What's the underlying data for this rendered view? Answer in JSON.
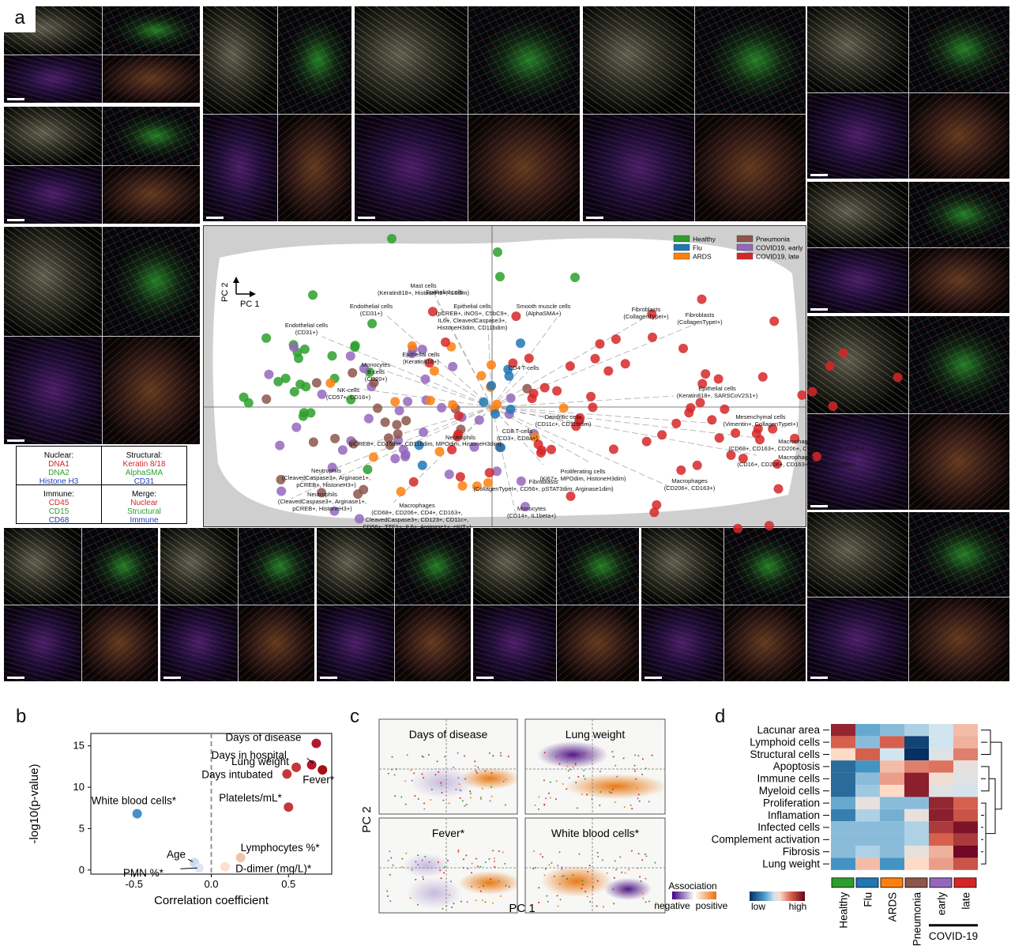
{
  "panel_labels": {
    "a": "a",
    "b": "b",
    "c": "c",
    "d": "d"
  },
  "channel_legend": {
    "nuclear": {
      "title": "Nuclear:",
      "items": [
        {
          "label": "DNA1",
          "color": "#d62728"
        },
        {
          "label": "DNA2",
          "color": "#2ca02c"
        },
        {
          "label": "Histone H3",
          "color": "#1f3fbf"
        }
      ]
    },
    "structural": {
      "title": "Structural:",
      "items": [
        {
          "label": "Keratin 8/18",
          "color": "#d62728"
        },
        {
          "label": "AlphaSMA",
          "color": "#2ca02c"
        },
        {
          "label": "CD31",
          "color": "#1f3fbf"
        }
      ]
    },
    "immune": {
      "title": "Immune:",
      "items": [
        {
          "label": "CD45",
          "color": "#d62728"
        },
        {
          "label": "CD15",
          "color": "#2ca02c"
        },
        {
          "label": "CD68",
          "color": "#1f3fbf"
        }
      ]
    },
    "merge": {
      "title": "Merge:",
      "items": [
        {
          "label": "Nuclear",
          "color": "#d62728"
        },
        {
          "label": "Structural",
          "color": "#2ca02c"
        },
        {
          "label": "Immune",
          "color": "#1f3fbf"
        }
      ]
    }
  },
  "pca": {
    "axis_labels": {
      "pc1": "PC 1",
      "pc2": "PC 2"
    },
    "legend": [
      {
        "label": "Healthy",
        "color": "#2ca02c"
      },
      {
        "label": "Pneumonia",
        "color": "#8c564b"
      },
      {
        "label": "Flu",
        "color": "#1f77b4"
      },
      {
        "label": "COVID19, early",
        "color": "#9467bd"
      },
      {
        "label": "ARDS",
        "color": "#ff7f0e"
      },
      {
        "label": "COVID19, late",
        "color": "#d62728"
      }
    ],
    "loadings": [
      {
        "lines": [
          "Mast cells",
          "(Keratin818+, HistoneH3+, IL6dim)"
        ]
      },
      {
        "lines": [
          "Epithelial cells"
        ]
      },
      {
        "lines": [
          "Endothelial cells",
          "(CD31+)"
        ]
      },
      {
        "lines": [
          "Epithelial cells",
          "(pCREB+, iNOS+, C5bC9+,",
          "IL6+, CleavedCaspase3+,",
          "HistoneH3dim, CD11bdim)"
        ]
      },
      {
        "lines": [
          "Smooth muscle cells",
          "(AlphaSMA+)"
        ]
      },
      {
        "lines": [
          "Fibroblasts",
          "(CollagenTypeI+)"
        ]
      },
      {
        "lines": [
          "Fibroblasts",
          "(CollagenTypeI+)"
        ]
      },
      {
        "lines": [
          "Endothelial cells",
          "(CD31+)"
        ]
      },
      {
        "lines": [
          "Epithelial cells",
          "(Keratin818+)"
        ]
      },
      {
        "lines": [
          "Monocytes",
          "B cells",
          "(CD20+)"
        ]
      },
      {
        "lines": [
          "CD4 T-cells"
        ]
      },
      {
        "lines": [
          "NK-cells",
          "(CD57+, CD16+)"
        ]
      },
      {
        "lines": [
          "Epithelial cells",
          "(Keratin818+, SARSCoV2S1+)"
        ]
      },
      {
        "lines": [
          "Dendritic cells",
          "(CD11c+, CD11bdim)"
        ]
      },
      {
        "lines": [
          "Mesenchymal cells",
          "(Vimentin+, CollagenTypeI+)"
        ]
      },
      {
        "lines": [
          "CD8 T-cells",
          "(CD3+, CD8a+)"
        ]
      },
      {
        "lines": [
          "(pCREB+, CD15dim, CD11bdim, MPOdim, HistoneH3dim)"
        ]
      },
      {
        "lines": [
          "Neutrophils"
        ]
      },
      {
        "lines": [
          "Macrophages",
          "(CD68+, CD163+, CD206+, CD16+, CD14+, CD4+)"
        ]
      },
      {
        "lines": [
          "Macrophages",
          "(CD16+, CD206+, CD163+, CD68-, CD4dim)"
        ]
      },
      {
        "lines": [
          "Fibroblasts",
          "(CollagenTypeI+, CD56+, pSTAT3dim, Arginase1dim)"
        ]
      },
      {
        "lines": [
          "Proliferating cells",
          "(Ki67+, MPOdim, HistoneH3dim)"
        ]
      },
      {
        "lines": [
          "Neutrophils",
          "(CleavedCaspase3+, Arginase1+,",
          "pCREB+, HistoneH3+)"
        ]
      },
      {
        "lines": [
          "Neutrophils",
          "(CleavedCaspase3+, Arginase1+,",
          "pCREB+, HistoneH3+)"
        ]
      },
      {
        "lines": [
          "Macrophages",
          "(CD206+, CD163+)"
        ]
      },
      {
        "lines": [
          "Macrophages",
          "(CD68+, CD206+, CD4+, CD163+,",
          "CleavedCaspase3+, CD123+, CD11c+,",
          "CD56+, TTF1+, IL6+, Arginase1+, cKIT+)"
        ]
      },
      {
        "lines": [
          "Monocytes",
          "(CD14+, IL1beta+)"
        ]
      }
    ]
  },
  "chart_data": [
    {
      "id": "b",
      "type": "scatter",
      "xlabel": "Correlation coefficient",
      "ylabel": "-log10(p-value)",
      "xlim": [
        -0.78,
        0.78
      ],
      "ylim": [
        -0.5,
        16.5
      ],
      "xticks": [
        "-0.5",
        "0.0",
        "0.5"
      ],
      "xtick_values": [
        -0.5,
        0.0,
        0.5
      ],
      "yticks": [
        "0",
        "5",
        "10",
        "15"
      ],
      "ytick_values": [
        0,
        5,
        10,
        15
      ],
      "points": [
        {
          "label": "Days of disease",
          "x": 0.68,
          "y": 15.3,
          "color": "#b2182b"
        },
        {
          "label": "Days in hospital",
          "x": 0.65,
          "y": 12.7,
          "color": "#b2182b"
        },
        {
          "label": "Lung weight",
          "x": 0.55,
          "y": 12.4,
          "color": "#c4383a"
        },
        {
          "label": "Days intubated",
          "x": 0.49,
          "y": 11.6,
          "color": "#c4383a"
        },
        {
          "label": "Fever*",
          "x": 0.72,
          "y": 12.1,
          "color": "#a50f15"
        },
        {
          "label": "Platelets/mL*",
          "x": 0.5,
          "y": 7.6,
          "color": "#c4383a"
        },
        {
          "label": "White blood cells*",
          "x": -0.48,
          "y": 6.8,
          "color": "#4a90c8"
        },
        {
          "label": "Lymphocytes %*",
          "x": 0.19,
          "y": 1.5,
          "color": "#f4c3a5"
        },
        {
          "label": "Age",
          "x": -0.11,
          "y": 0.9,
          "color": "#c8ddf0"
        },
        {
          "label": "PMN %*",
          "x": -0.08,
          "y": 0.25,
          "color": "#dde8f3"
        },
        {
          "label": "D-dimer (mg/L)*",
          "x": 0.09,
          "y": 0.4,
          "color": "#fbe0d0"
        }
      ]
    },
    {
      "id": "c",
      "type": "heatmap",
      "xlabel": "PC 1",
      "ylabel": "PC 2",
      "facets": [
        "Days of disease",
        "Lung weight",
        "Fever*",
        "White blood cells*"
      ],
      "colorbar": {
        "title": "Association",
        "low": "negative",
        "high": "positive",
        "colors": [
          "#3f007d",
          "#ffffff",
          "#e6730a"
        ]
      }
    },
    {
      "id": "d",
      "type": "heatmap",
      "rows": [
        "Lacunar area",
        "Lymphoid cells",
        "Structural cells",
        "Apoptosis",
        "Immune cells",
        "Myeloid cells",
        "Proliferation",
        "Inflamation",
        "Infected cells",
        "Complement activation",
        "Fibrosis",
        "Lung weight"
      ],
      "columns": [
        "Healthy",
        "Flu",
        "ARDS",
        "Pneumonia",
        "early",
        "late"
      ],
      "column_colors": [
        "#2ca02c",
        "#1f77b4",
        "#ff7f0e",
        "#8c564b",
        "#9467bd",
        "#d62728"
      ],
      "group_label": "COVID-19",
      "colorbar": {
        "low": "low",
        "high": "high"
      },
      "values": [
        [
          0.9,
          0.3,
          0.35,
          0.4,
          0.45,
          0.6
        ],
        [
          0.75,
          0.35,
          0.75,
          0.05,
          0.45,
          0.62
        ],
        [
          0.55,
          0.75,
          0.45,
          0.0,
          0.48,
          0.7
        ],
        [
          0.15,
          0.25,
          0.6,
          0.7,
          0.72,
          0.5
        ],
        [
          0.15,
          0.35,
          0.65,
          0.92,
          0.52,
          0.48
        ],
        [
          0.15,
          0.38,
          0.55,
          0.92,
          0.48,
          0.46
        ],
        [
          0.3,
          0.5,
          0.35,
          0.35,
          0.9,
          0.75
        ],
        [
          0.2,
          0.4,
          0.32,
          0.5,
          0.92,
          0.78
        ],
        [
          0.35,
          0.35,
          0.35,
          0.4,
          0.85,
          0.95
        ],
        [
          0.35,
          0.35,
          0.35,
          0.4,
          0.75,
          0.85
        ],
        [
          0.35,
          0.4,
          0.35,
          0.5,
          0.62,
          0.98
        ],
        [
          0.25,
          0.6,
          0.25,
          0.55,
          0.65,
          0.78
        ]
      ]
    }
  ]
}
